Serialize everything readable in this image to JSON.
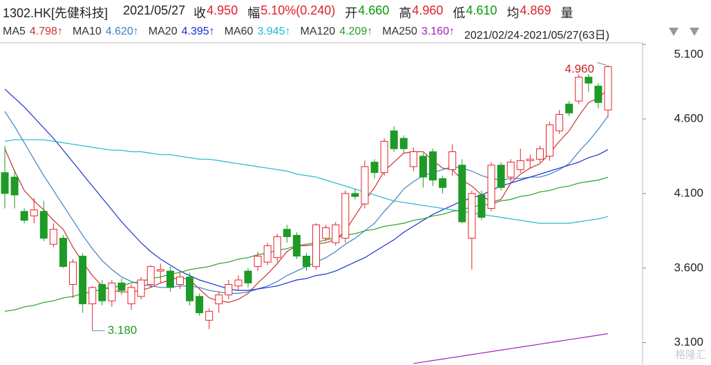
{
  "chart_data": {
    "type": "candlestick",
    "title": "1302.HK[先健科技]",
    "date": "2021/05/27",
    "quote": [
      {
        "label": "收",
        "value": "4.950",
        "color": "#e0202a"
      },
      {
        "label": "幅",
        "value": "5.10%(0.240)",
        "color": "#e0202a"
      },
      {
        "label": "开",
        "value": "4.660",
        "color": "#0a9a0a"
      },
      {
        "label": "高",
        "value": "4.960",
        "color": "#e0202a"
      },
      {
        "label": "低",
        "value": "4.610",
        "color": "#0a9a0a"
      },
      {
        "label": "均",
        "value": "4.869",
        "color": "#e0202a"
      },
      {
        "label": "量",
        "value": "",
        "color": "#222"
      }
    ],
    "range_label": "2021/02/24-2021/05/27(63日)",
    "up_color": "#e8212a",
    "down_color": "#1e9a27",
    "open": [
      4.24,
      4.21,
      3.98,
      3.95,
      3.98,
      3.76,
      3.8,
      3.49,
      3.68,
      3.36,
      3.49,
      3.38,
      3.5,
      3.36,
      3.41,
      3.49,
      3.58,
      3.58,
      3.49,
      3.54,
      3.41,
      3.25,
      3.36,
      3.42,
      3.48,
      3.58,
      3.61,
      3.64,
      3.67,
      3.86,
      3.82,
      3.68,
      3.61,
      3.8,
      3.77,
      3.8,
      4.1,
      4.03,
      4.31,
      4.24,
      4.52,
      4.47,
      4.28,
      4.35,
      4.38,
      4.2,
      4.26,
      4.29,
      3.8,
      4.09,
      4.0,
      4.29,
      4.21,
      4.26,
      4.32,
      4.33,
      4.35,
      4.52,
      4.7,
      4.72,
      4.88,
      4.82,
      4.66
    ],
    "high": [
      4.42,
      4.26,
      4.0,
      4.07,
      4.05,
      3.9,
      3.82,
      3.66,
      3.7,
      3.48,
      3.52,
      3.52,
      3.53,
      3.49,
      3.54,
      3.62,
      3.63,
      3.61,
      3.57,
      3.57,
      3.43,
      3.33,
      3.44,
      3.52,
      3.55,
      3.6,
      3.71,
      3.77,
      3.83,
      3.89,
      3.84,
      3.7,
      3.9,
      3.89,
      3.91,
      4.12,
      4.13,
      4.32,
      4.33,
      4.47,
      4.55,
      4.49,
      4.41,
      4.37,
      4.4,
      4.22,
      4.43,
      4.33,
      4.12,
      4.12,
      4.31,
      4.31,
      4.33,
      4.4,
      4.36,
      4.42,
      4.58,
      4.66,
      4.72,
      4.9,
      4.9,
      4.84,
      4.96
    ],
    "low": [
      4.0,
      4.0,
      3.9,
      3.9,
      3.78,
      3.74,
      3.6,
      3.4,
      3.3,
      3.18,
      3.35,
      3.34,
      3.42,
      3.32,
      3.39,
      3.47,
      3.5,
      3.44,
      3.46,
      3.35,
      3.28,
      3.19,
      3.3,
      3.39,
      3.45,
      3.47,
      3.58,
      3.62,
      3.64,
      3.77,
      3.66,
      3.58,
      3.59,
      3.78,
      3.75,
      3.77,
      4.06,
      4.0,
      4.2,
      4.22,
      4.38,
      4.37,
      4.25,
      4.14,
      4.15,
      4.1,
      4.22,
      3.9,
      3.59,
      3.92,
      3.98,
      4.12,
      4.18,
      4.24,
      4.27,
      4.31,
      4.32,
      4.5,
      4.62,
      4.7,
      4.78,
      4.67,
      4.61
    ],
    "close": [
      4.1,
      4.09,
      3.92,
      3.99,
      3.8,
      3.86,
      3.61,
      3.64,
      3.36,
      3.47,
      3.38,
      3.5,
      3.45,
      3.47,
      3.52,
      3.61,
      3.59,
      3.47,
      3.54,
      3.38,
      3.3,
      3.31,
      3.42,
      3.49,
      3.52,
      3.5,
      3.68,
      3.75,
      3.81,
      3.81,
      3.68,
      3.61,
      3.89,
      3.87,
      3.89,
      4.1,
      4.08,
      4.28,
      4.24,
      4.45,
      4.4,
      4.4,
      4.38,
      4.21,
      4.19,
      4.14,
      4.38,
      3.91,
      4.1,
      3.94,
      4.29,
      4.14,
      4.31,
      4.32,
      4.33,
      4.4,
      4.56,
      4.63,
      4.64,
      4.88,
      4.84,
      4.71,
      4.95
    ],
    "series": [
      {
        "name": "MA5",
        "legend": "4.798↑",
        "color": "#c8322b",
        "values": [
          4.4,
          4.25,
          4.12,
          4.05,
          3.99,
          3.92,
          3.86,
          3.74,
          3.64,
          3.55,
          3.48,
          3.45,
          3.44,
          3.44,
          3.45,
          3.47,
          3.5,
          3.52,
          3.54,
          3.52,
          3.46,
          3.4,
          3.38,
          3.37,
          3.39,
          3.43,
          3.5,
          3.56,
          3.63,
          3.71,
          3.75,
          3.75,
          3.76,
          3.77,
          3.79,
          3.85,
          3.95,
          4.05,
          4.14,
          4.25,
          4.31,
          4.37,
          4.38,
          4.38,
          4.32,
          4.27,
          4.26,
          4.19,
          4.15,
          4.09,
          4.04,
          4.06,
          4.17,
          4.23,
          4.27,
          4.3,
          4.37,
          4.45,
          4.52,
          4.62,
          4.71,
          4.74,
          4.8
        ]
      },
      {
        "name": "MA10",
        "legend": "4.620↑",
        "color": "#3d7fc4",
        "values": [
          4.65,
          4.55,
          4.44,
          4.33,
          4.22,
          4.12,
          4.02,
          3.92,
          3.82,
          3.73,
          3.65,
          3.59,
          3.54,
          3.51,
          3.49,
          3.48,
          3.47,
          3.47,
          3.48,
          3.48,
          3.47,
          3.45,
          3.44,
          3.43,
          3.43,
          3.44,
          3.46,
          3.48,
          3.51,
          3.55,
          3.58,
          3.61,
          3.64,
          3.67,
          3.71,
          3.76,
          3.8,
          3.85,
          3.9,
          3.98,
          4.05,
          4.13,
          4.18,
          4.22,
          4.24,
          4.26,
          4.28,
          4.27,
          4.25,
          4.22,
          4.2,
          4.19,
          4.2,
          4.2,
          4.21,
          4.21,
          4.23,
          4.26,
          4.3,
          4.38,
          4.45,
          4.53,
          4.62
        ]
      },
      {
        "name": "MA20",
        "legend": "4.395↑",
        "color": "#1a2fd0",
        "values": [
          4.8,
          4.74,
          4.68,
          4.61,
          4.54,
          4.47,
          4.39,
          4.31,
          4.23,
          4.15,
          4.07,
          3.99,
          3.91,
          3.84,
          3.77,
          3.71,
          3.66,
          3.62,
          3.58,
          3.55,
          3.52,
          3.5,
          3.48,
          3.46,
          3.45,
          3.45,
          3.46,
          3.47,
          3.48,
          3.5,
          3.52,
          3.53,
          3.55,
          3.56,
          3.58,
          3.61,
          3.64,
          3.67,
          3.71,
          3.75,
          3.79,
          3.84,
          3.88,
          3.92,
          3.96,
          3.99,
          4.02,
          4.05,
          4.07,
          4.09,
          4.12,
          4.15,
          4.17,
          4.19,
          4.21,
          4.23,
          4.25,
          4.27,
          4.29,
          4.31,
          4.34,
          4.36,
          4.395
        ]
      },
      {
        "name": "MA60",
        "legend": "3.945↑",
        "color": "#1fb8d0",
        "values": [
          4.45,
          4.46,
          4.46,
          4.46,
          4.46,
          4.45,
          4.44,
          4.43,
          4.42,
          4.41,
          4.4,
          4.39,
          4.39,
          4.38,
          4.38,
          4.37,
          4.36,
          4.36,
          4.35,
          4.34,
          4.33,
          4.33,
          4.32,
          4.31,
          4.3,
          4.29,
          4.28,
          4.27,
          4.26,
          4.25,
          4.23,
          4.22,
          4.21,
          4.19,
          4.17,
          4.15,
          4.13,
          4.11,
          4.09,
          4.07,
          4.05,
          4.04,
          4.03,
          4.02,
          4.01,
          4.0,
          3.99,
          3.98,
          3.97,
          3.96,
          3.95,
          3.94,
          3.93,
          3.92,
          3.91,
          3.9,
          3.9,
          3.9,
          3.9,
          3.91,
          3.92,
          3.93,
          3.945
        ]
      },
      {
        "name": "MA120",
        "legend": "4.209↑",
        "color": "#22a022",
        "values": [
          3.31,
          3.32,
          3.34,
          3.35,
          3.37,
          3.38,
          3.4,
          3.41,
          3.43,
          3.44,
          3.46,
          3.47,
          3.48,
          3.5,
          3.51,
          3.53,
          3.54,
          3.56,
          3.57,
          3.59,
          3.6,
          3.61,
          3.63,
          3.64,
          3.66,
          3.67,
          3.69,
          3.7,
          3.72,
          3.73,
          3.75,
          3.76,
          3.77,
          3.79,
          3.8,
          3.82,
          3.83,
          3.85,
          3.86,
          3.88,
          3.89,
          3.9,
          3.92,
          3.93,
          3.95,
          3.96,
          3.98,
          3.99,
          4.01,
          4.02,
          4.03,
          4.05,
          4.06,
          4.08,
          4.09,
          4.11,
          4.12,
          4.14,
          4.15,
          4.17,
          4.18,
          4.19,
          4.209
        ]
      },
      {
        "name": "MA250",
        "legend": "3.160↑",
        "color": "#a020c0",
        "values": [
          null,
          null,
          null,
          null,
          null,
          null,
          null,
          null,
          null,
          null,
          null,
          null,
          null,
          null,
          null,
          null,
          null,
          null,
          null,
          null,
          null,
          null,
          null,
          null,
          null,
          null,
          null,
          null,
          null,
          null,
          null,
          null,
          null,
          null,
          null,
          null,
          null,
          null,
          null,
          null,
          null,
          null,
          2.96,
          2.97,
          2.98,
          2.99,
          3.0,
          3.01,
          3.02,
          3.03,
          3.04,
          3.05,
          3.06,
          3.07,
          3.08,
          3.09,
          3.1,
          3.11,
          3.12,
          3.13,
          3.14,
          3.15,
          3.16
        ]
      }
    ],
    "ylim": [
      2.95,
      5.11
    ],
    "yticks": [
      {
        "value": 3.1,
        "label": "3.100"
      },
      {
        "value": 3.6,
        "label": "3.600"
      },
      {
        "value": 4.1,
        "label": "4.100"
      },
      {
        "value": 4.6,
        "label": "4.600"
      },
      {
        "value": 5.1,
        "label": "5.100"
      }
    ],
    "grid": false,
    "annotations": [
      {
        "text": "4.960",
        "color": "#c8222a",
        "at": "high"
      },
      {
        "text": "3.180",
        "color": "#1e9a27",
        "at": "low"
      }
    ],
    "watermark": "格隆汇"
  }
}
